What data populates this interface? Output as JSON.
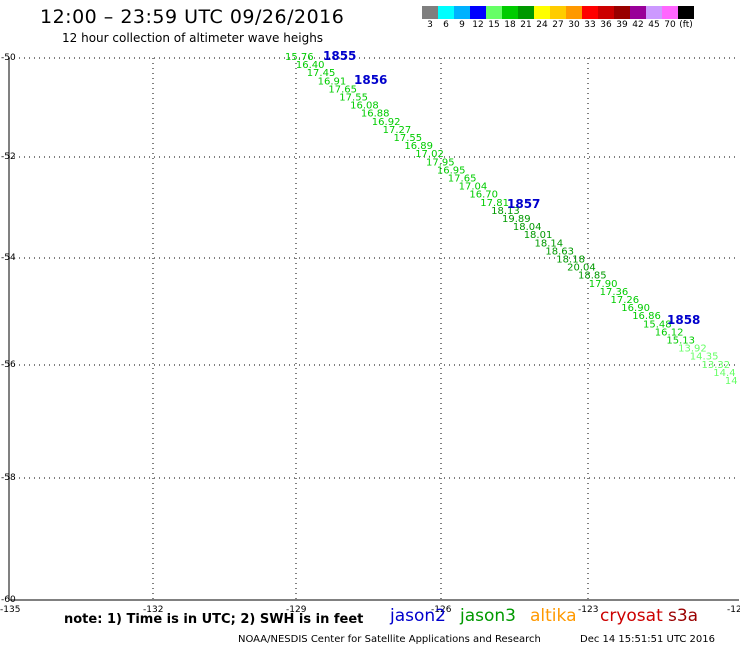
{
  "header": {
    "title": "12:00 – 23:59 UTC 09/26/2016",
    "subtitle": "12 hour collection of altimeter wave heighs"
  },
  "colorbar": {
    "colors": [
      "#7f7f7f",
      "#00ffff",
      "#00b2ff",
      "#0000ff",
      "#66ff66",
      "#00cc00",
      "#009900",
      "#ffff00",
      "#ffcc00",
      "#ff9900",
      "#ff0000",
      "#cc0000",
      "#990000",
      "#990099",
      "#cc99ff",
      "#ff66ff",
      "#000000"
    ],
    "labels": [
      "3",
      "6",
      "9",
      "12",
      "15",
      "18",
      "21",
      "24",
      "27",
      "30",
      "33",
      "36",
      "39",
      "42",
      "45",
      "70",
      "(ft)"
    ]
  },
  "map": {
    "lon_ticks": [
      "-132",
      "-129",
      "-126",
      "-123"
    ],
    "lon_edge_labels": [
      "-135",
      "-12"
    ],
    "lat_labels": [
      "-50",
      "-52",
      "-54",
      "-56",
      "-58",
      "-60"
    ],
    "pass_times": [
      "1855",
      "1856",
      "1857",
      "1858"
    ],
    "swh_values": [
      "15.76",
      "16.40",
      "17.45",
      "16.91",
      "17.65",
      "17.55",
      "16.08",
      "16.88",
      "16.92",
      "17.27",
      "17.55",
      "16.89",
      "17.02",
      "17.95",
      "16.95",
      "17.65",
      "17.04",
      "16.70",
      "17.81",
      "18.13",
      "19.89",
      "18.04",
      "18.01",
      "18.14",
      "18.63",
      "18.18",
      "20.04",
      "18.85",
      "17.90",
      "17.36",
      "17.26",
      "16.90",
      "16.86",
      "15.48",
      "16.12",
      "15.13",
      "13.92",
      "14.35",
      "13.32",
      "14.4",
      "14"
    ],
    "colors": {
      "dark_green": "#009900",
      "mid_green": "#00cc00",
      "light_green": "#66ff66",
      "time_label": "#0000cc",
      "grid": "#000000"
    }
  },
  "footer": {
    "note": "note: 1) Time is in UTC; 2) SWH is in feet",
    "satellites": [
      {
        "name": "jason2",
        "color": "#0000cc"
      },
      {
        "name": "jason3",
        "color": "#009900"
      },
      {
        "name": "altika",
        "color": "#ff9900"
      },
      {
        "name": "cryosat",
        "color": "#cc0000"
      },
      {
        "name": "s3a",
        "color": "#990000"
      }
    ],
    "credit": "NOAA/NESDIS Center for Satellite Applications and Research",
    "timestamp": "Dec 14 15:51:51 UTC 2016"
  }
}
